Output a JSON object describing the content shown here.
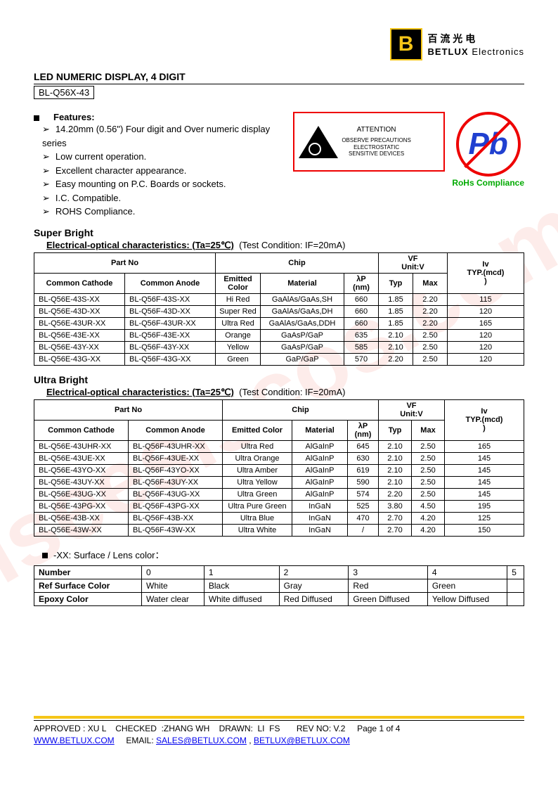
{
  "watermark": "iseesiscos.com",
  "logo": {
    "letter": "B",
    "cn": "百 流 光 电",
    "en_bold": "BETLUX",
    "en_rest": "Electronics"
  },
  "title": "LED NUMERIC DISPLAY, 4 DIGIT",
  "part_no": "BL-Q56X-43",
  "features": {
    "heading": "Features:",
    "items": [
      "14.20mm (0.56\")    Four digit and Over numeric display series",
      "Low current operation.",
      "Excellent character appearance.",
      "Easy mounting on P.C. Boards or sockets.",
      "I.C. Compatible.",
      "ROHS Compliance."
    ]
  },
  "esd": {
    "attention": "ATTENTION",
    "lines": "OBSERVE PRECAUTIONS\nELECTROSTATIC\nSENSITIVE DEVICES"
  },
  "pb": {
    "symbol": "Pb",
    "label": "RoHs Compliance"
  },
  "super_bright": {
    "title": "Super Bright",
    "subtitle": "Electrical-optical characteristics: (Ta=25℃)",
    "condition": "(Test Condition: IF=20mA)",
    "headers": {
      "part_no": "Part No",
      "chip": "Chip",
      "vf": "VF",
      "vf_unit": "Unit:V",
      "iv": "Iv",
      "iv_unit": "TYP.(mcd)",
      "cc": "Common Cathode",
      "ca": "Common Anode",
      "emit": "Emitted Color",
      "mat": "Material",
      "lp": "λP",
      "lp_unit": "(nm)",
      "typ": "Typ",
      "max": "Max"
    },
    "rows": [
      {
        "cc": "BL-Q56E-43S-XX",
        "ca": "BL-Q56F-43S-XX",
        "color": "Hi Red",
        "mat": "GaAlAs/GaAs,SH",
        "lp": "660",
        "typ": "1.85",
        "max": "2.20",
        "iv": "115"
      },
      {
        "cc": "BL-Q56E-43D-XX",
        "ca": "BL-Q56F-43D-XX",
        "color": "Super Red",
        "mat": "GaAlAs/GaAs,DH",
        "lp": "660",
        "typ": "1.85",
        "max": "2.20",
        "iv": "120"
      },
      {
        "cc": "BL-Q56E-43UR-XX",
        "ca": "BL-Q56F-43UR-XX",
        "color": "Ultra Red",
        "mat": "GaAlAs/GaAs,DDH",
        "lp": "660",
        "typ": "1.85",
        "max": "2.20",
        "iv": "165"
      },
      {
        "cc": "BL-Q56E-43E-XX",
        "ca": "BL-Q56F-43E-XX",
        "color": "Orange",
        "mat": "GaAsP/GaP",
        "lp": "635",
        "typ": "2.10",
        "max": "2.50",
        "iv": "120"
      },
      {
        "cc": "BL-Q56E-43Y-XX",
        "ca": "BL-Q56F-43Y-XX",
        "color": "Yellow",
        "mat": "GaAsP/GaP",
        "lp": "585",
        "typ": "2.10",
        "max": "2.50",
        "iv": "120"
      },
      {
        "cc": "BL-Q56E-43G-XX",
        "ca": "BL-Q56F-43G-XX",
        "color": "Green",
        "mat": "GaP/GaP",
        "lp": "570",
        "typ": "2.20",
        "max": "2.50",
        "iv": "120"
      }
    ]
  },
  "ultra_bright": {
    "title": "Ultra Bright",
    "subtitle": "Electrical-optical characteristics: (Ta=25℃)",
    "condition": "(Test Condition: IF=20mA)",
    "headers": {
      "part_no": "Part No",
      "chip": "Chip",
      "vf": "VF",
      "vf_unit": "Unit:V",
      "iv": "Iv",
      "iv_unit": "TYP.(mcd)",
      "cc": "Common Cathode",
      "ca": "Common Anode",
      "emit": "Emitted Color",
      "mat": "Material",
      "lp": "λP",
      "lp_unit": "(nm)",
      "typ": "Typ",
      "max": "Max"
    },
    "rows": [
      {
        "cc": "BL-Q56E-43UHR-XX",
        "ca": "BL-Q56F-43UHR-XX",
        "color": "Ultra Red",
        "mat": "AlGaInP",
        "lp": "645",
        "typ": "2.10",
        "max": "2.50",
        "iv": "165"
      },
      {
        "cc": "BL-Q56E-43UE-XX",
        "ca": "BL-Q56F-43UE-XX",
        "color": "Ultra Orange",
        "mat": "AlGaInP",
        "lp": "630",
        "typ": "2.10",
        "max": "2.50",
        "iv": "145"
      },
      {
        "cc": "BL-Q56E-43YO-XX",
        "ca": "BL-Q56F-43YO-XX",
        "color": "Ultra Amber",
        "mat": "AlGaInP",
        "lp": "619",
        "typ": "2.10",
        "max": "2.50",
        "iv": "145"
      },
      {
        "cc": "BL-Q56E-43UY-XX",
        "ca": "BL-Q56F-43UY-XX",
        "color": "Ultra Yellow",
        "mat": "AlGaInP",
        "lp": "590",
        "typ": "2.10",
        "max": "2.50",
        "iv": "145"
      },
      {
        "cc": "BL-Q56E-43UG-XX",
        "ca": "BL-Q56F-43UG-XX",
        "color": "Ultra Green",
        "mat": "AlGaInP",
        "lp": "574",
        "typ": "2.20",
        "max": "2.50",
        "iv": "145"
      },
      {
        "cc": "BL-Q56E-43PG-XX",
        "ca": "BL-Q56F-43PG-XX",
        "color": "Ultra Pure Green",
        "mat": "InGaN",
        "lp": "525",
        "typ": "3.80",
        "max": "4.50",
        "iv": "195"
      },
      {
        "cc": "BL-Q56E-43B-XX",
        "ca": "BL-Q56F-43B-XX",
        "color": "Ultra Blue",
        "mat": "InGaN",
        "lp": "470",
        "typ": "2.70",
        "max": "4.20",
        "iv": "125"
      },
      {
        "cc": "BL-Q56E-43W-XX",
        "ca": "BL-Q56F-43W-XX",
        "color": "Ultra White",
        "mat": "InGaN",
        "lp": "/",
        "typ": "2.70",
        "max": "4.20",
        "iv": "150"
      }
    ]
  },
  "surface": {
    "caption": "-XX: Surface / Lens color：",
    "rows": {
      "number": "Number",
      "ref": "Ref Surface Color",
      "epoxy": "Epoxy Color"
    },
    "cols": [
      "0",
      "1",
      "2",
      "3",
      "4",
      "5"
    ],
    "ref_vals": [
      "White",
      "Black",
      "Gray",
      "Red",
      "Green",
      ""
    ],
    "epoxy_vals": [
      "Water clear",
      "White diffused",
      "Red Diffused",
      "Green Diffused",
      "Yellow Diffused",
      ""
    ]
  },
  "footer": {
    "line1": "APPROVED : XU L    CHECKED  :ZHANG WH    DRAWN:  LI  FS       REV NO: V.2     Page 1 of 4",
    "web": "WWW.BETLUX.COM",
    "email_label": "     EMAIL: ",
    "email1": "SALES@BETLUX.COM",
    "sep": " , ",
    "email2": "BETLUX@BETLUX.COM"
  }
}
